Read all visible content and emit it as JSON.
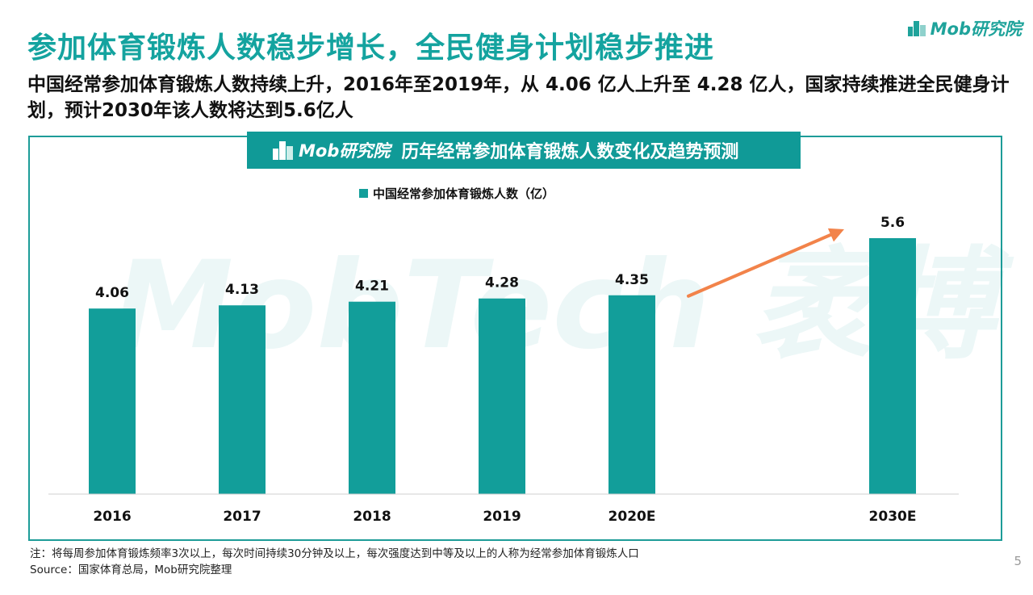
{
  "title": "参加体育锻炼人数稳步增长，全民健身计划稳步推进",
  "brand": "Mob研究院",
  "subtitle": "中国经常参加体育锻炼人数持续上升，2016年至2019年，从 4.06 亿人上升至 4.28 亿人，国家持续推进全民健身计划，预计2030年该人数将达到5.6亿人",
  "chart_header": {
    "brand": "Mob研究院",
    "title": "历年经常参加体育锻炼人数变化及趋势预测"
  },
  "watermark": "MobTech 袤博",
  "colors": {
    "accent": "#129e9a",
    "arrow": "#f2834a"
  },
  "chart_data": {
    "type": "bar",
    "title": "历年经常参加体育锻炼人数变化及趋势预测",
    "categories": [
      "2016",
      "2017",
      "2018",
      "2019",
      "2020E",
      "2030E"
    ],
    "series": [
      {
        "name": "中国经常参加体育锻炼人数（亿）",
        "values": [
          4.06,
          4.13,
          4.21,
          4.28,
          4.35,
          5.6
        ]
      }
    ],
    "data_labels": [
      "4.06",
      "4.13",
      "4.21",
      "4.28",
      "4.35",
      "5.6"
    ],
    "ylim": [
      0,
      6.6
    ],
    "grid": false,
    "legend_position": "top-center",
    "trend_arrow": {
      "from": "2020E",
      "to": "2030E"
    }
  },
  "footnote": {
    "note": "注：将每周参加体育锻炼频率3次以上，每次时间持续30分钟及以上，每次强度达到中等及以上的人称为经常参加体育锻炼人口",
    "source": "Source：国家体育总局，Mob研究院整理"
  },
  "page_number": "5"
}
